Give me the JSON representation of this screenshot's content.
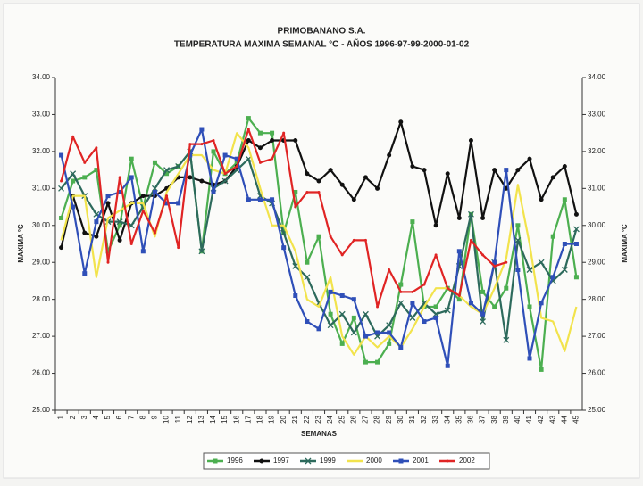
{
  "chart_data": {
    "type": "line",
    "title": "PRIMOBANANO S.A.",
    "subtitle": "TEMPERATURA MAXIMA SEMANAL °C -  AÑOS 1996-97-99-2000-01-02",
    "x_label": "SEMANAS",
    "y_label": "MAXIMA  °C",
    "y2_label": "MAXIMA  °C",
    "categories": [
      "1",
      "2",
      "3",
      "4",
      "5",
      "6",
      "7",
      "8",
      "9",
      "10",
      "11",
      "12",
      "13",
      "14",
      "15",
      "16",
      "17",
      "18",
      "19",
      "20",
      "21",
      "22",
      "23",
      "24",
      "25",
      "26",
      "27",
      "28",
      "29",
      "30",
      "31",
      "32",
      "33",
      "34",
      "35",
      "36",
      "37",
      "38",
      "39",
      "40",
      "41",
      "42",
      "43",
      "44",
      "45"
    ],
    "ylim": [
      25,
      34
    ],
    "yticks": [
      {
        "value": 25,
        "label": "25.00"
      },
      {
        "value": 26,
        "label": "26.00"
      },
      {
        "value": 27,
        "label": "27.00"
      },
      {
        "value": 28,
        "label": "28.00"
      },
      {
        "value": 29,
        "label": "29.00"
      },
      {
        "value": 30,
        "label": "30.00"
      },
      {
        "value": 31,
        "label": "31.00"
      },
      {
        "value": 32,
        "label": "32.00"
      },
      {
        "value": 33,
        "label": "33.00"
      },
      {
        "value": 34,
        "label": "34.00"
      }
    ],
    "y2lim": [
      25,
      34
    ],
    "y2ticks": [
      {
        "value": 25,
        "label": "25.00"
      },
      {
        "value": 26,
        "label": "26.00"
      },
      {
        "value": 27,
        "label": "27.00"
      },
      {
        "value": 28,
        "label": "28.00"
      },
      {
        "value": 29,
        "label": "29.00"
      },
      {
        "value": 30,
        "label": "30.00"
      },
      {
        "value": 31,
        "label": "31.00"
      },
      {
        "value": 32,
        "label": "32.00"
      },
      {
        "value": 33,
        "label": "33.00"
      },
      {
        "value": 34,
        "label": "34.00"
      }
    ],
    "grid": false,
    "legend": "bottom",
    "series": [
      {
        "name": "1996",
        "color": "#4caf50",
        "marker": "square",
        "values": [
          30.2,
          31.2,
          31.3,
          31.5,
          29.3,
          30.0,
          31.8,
          30.5,
          31.7,
          31.4,
          31.6,
          32.0,
          29.3,
          32.0,
          31.4,
          31.7,
          32.9,
          32.5,
          32.5,
          29.8,
          30.9,
          29.0,
          29.7,
          27.6,
          26.8,
          27.5,
          26.3,
          26.3,
          26.8,
          28.4,
          30.1,
          27.8,
          27.8,
          28.3,
          28.0,
          30.3,
          28.2,
          27.8,
          28.3,
          30.0,
          27.8,
          26.1,
          29.7,
          30.7,
          28.6
        ]
      },
      {
        "name": "1997",
        "color": "#111111",
        "marker": "circle",
        "values": [
          29.4,
          30.8,
          29.8,
          29.7,
          30.6,
          29.6,
          30.6,
          30.8,
          30.8,
          31.0,
          31.3,
          31.3,
          31.2,
          31.1,
          31.2,
          31.6,
          32.3,
          32.1,
          32.3,
          32.3,
          32.3,
          31.4,
          31.2,
          31.5,
          31.1,
          30.7,
          31.3,
          31.0,
          31.9,
          32.8,
          31.6,
          31.5,
          30.0,
          31.4,
          30.2,
          32.3,
          30.2,
          31.5,
          31.0,
          31.5,
          31.8,
          30.7,
          31.3,
          31.6,
          30.3
        ]
      },
      {
        "name": "1999",
        "color": "#2d6a5c",
        "marker": "cross",
        "values": [
          31.0,
          31.4,
          30.8,
          30.3,
          30.1,
          30.1,
          30.0,
          30.5,
          31.0,
          31.5,
          31.6,
          32.0,
          29.3,
          31.0,
          31.2,
          31.5,
          31.8,
          30.8,
          30.6,
          29.8,
          28.9,
          28.6,
          27.9,
          27.3,
          27.6,
          27.1,
          27.6,
          27.0,
          27.3,
          27.9,
          27.5,
          27.9,
          27.6,
          27.7,
          28.9,
          30.3,
          27.4,
          29.0,
          26.9,
          29.6,
          28.8,
          29.0,
          28.5,
          28.8,
          29.9
        ]
      },
      {
        "name": "2000",
        "color": "#f2e34c",
        "marker": "none",
        "values": [
          29.6,
          30.8,
          30.8,
          28.6,
          30.2,
          30.4,
          30.6,
          30.6,
          29.7,
          30.9,
          31.4,
          31.9,
          31.9,
          31.5,
          31.4,
          32.5,
          32.1,
          31.0,
          30.0,
          30.0,
          29.3,
          28.0,
          27.8,
          28.6,
          27.0,
          26.5,
          27.0,
          26.7,
          27.0,
          26.7,
          27.2,
          27.8,
          28.3,
          28.3,
          28.1,
          27.8,
          27.6,
          28.3,
          29.1,
          31.1,
          29.5,
          27.5,
          27.4,
          26.6,
          27.8
        ]
      },
      {
        "name": "2001",
        "color": "#2f4fb8",
        "marker": "square",
        "values": [
          31.9,
          30.5,
          28.7,
          30.1,
          30.8,
          30.9,
          31.3,
          29.3,
          30.9,
          30.6,
          30.6,
          31.9,
          32.6,
          30.9,
          31.9,
          31.8,
          30.7,
          30.7,
          30.7,
          29.4,
          28.1,
          27.4,
          27.2,
          28.2,
          28.1,
          28.0,
          27.0,
          27.1,
          27.1,
          26.7,
          27.9,
          27.4,
          27.5,
          26.2,
          29.3,
          27.9,
          27.6,
          29.0,
          31.5,
          28.8,
          26.4,
          27.9,
          28.6,
          29.5,
          29.5
        ]
      },
      {
        "name": "2002",
        "color": "#e02424",
        "marker": "dot",
        "values": [
          31.2,
          32.4,
          31.7,
          32.1,
          29.0,
          31.3,
          29.5,
          30.4,
          29.8,
          30.8,
          29.4,
          32.2,
          32.2,
          32.3,
          31.4,
          31.6,
          32.6,
          31.7,
          31.8,
          32.5,
          30.5,
          30.9,
          30.9,
          29.7,
          29.2,
          29.6,
          29.6,
          27.8,
          28.8,
          28.2,
          28.2,
          28.4,
          29.2,
          28.3,
          28.1,
          29.6,
          29.2,
          28.9,
          29.0,
          null,
          null,
          null,
          null,
          null,
          null
        ]
      }
    ]
  }
}
